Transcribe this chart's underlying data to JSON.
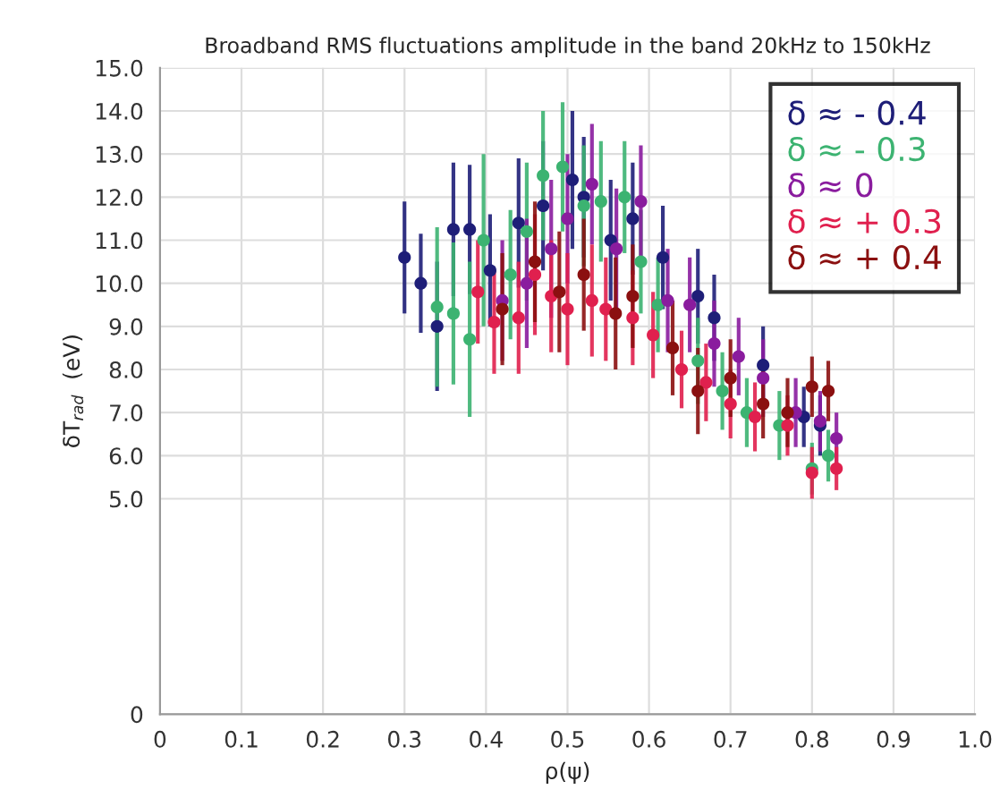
{
  "chart_data": {
    "type": "scatter",
    "title": "Broadband RMS fluctuations amplitude in the band 20kHz to 150kHz",
    "xlabel": "ρ(ψ)",
    "ylabel": "δT$_{rad}$  (eV)",
    "xlim": [
      0,
      1.0
    ],
    "xticks": [
      0,
      0.1,
      0.2,
      0.3,
      0.4,
      0.5,
      0.6,
      0.7,
      0.8,
      0.9,
      {
        "value": 1.0,
        "label": "1.0"
      }
    ],
    "ylim": [
      0,
      15
    ],
    "yticks": [
      0,
      {
        "value": 5,
        "label": "5.0"
      },
      {
        "value": 6,
        "label": "6.0"
      },
      {
        "value": 7,
        "label": "7.0"
      },
      {
        "value": 8,
        "label": "8.0"
      },
      {
        "value": 9,
        "label": "9.0"
      },
      {
        "value": 10,
        "label": "10.0"
      },
      {
        "value": 11,
        "label": "11.0"
      },
      {
        "value": 12,
        "label": "12.0"
      },
      {
        "value": 13,
        "label": "13.0"
      },
      {
        "value": 14,
        "label": "14.0"
      },
      {
        "value": 15,
        "label": "15.0"
      }
    ],
    "grid": true,
    "legend": "top right",
    "marker": "circle",
    "series": [
      {
        "name": "δ ≈ - 0.4",
        "color": "#1e1e78",
        "x": [
          0.3,
          0.32,
          0.34,
          0.36,
          0.38,
          0.405,
          0.44,
          0.47,
          0.506,
          0.52,
          0.553,
          0.58,
          0.617,
          0.66,
          0.68,
          0.74,
          0.79,
          0.81
        ],
        "values": [
          10.6,
          10.0,
          9.0,
          11.25,
          11.25,
          10.3,
          11.4,
          11.8,
          12.4,
          12.0,
          11.0,
          11.5,
          10.6,
          9.7,
          9.2,
          8.1,
          6.9,
          6.7
        ],
        "errors": [
          1.3,
          1.15,
          1.5,
          1.55,
          1.5,
          1.3,
          1.5,
          1.5,
          1.6,
          1.4,
          1.4,
          1.3,
          1.2,
          1.1,
          1.0,
          0.9,
          0.7,
          0.7
        ]
      },
      {
        "name": "δ ≈ - 0.3",
        "color": "#3cb371",
        "x": [
          0.34,
          0.36,
          0.38,
          0.397,
          0.43,
          0.45,
          0.47,
          0.494,
          0.52,
          0.541,
          0.57,
          0.59,
          0.611,
          0.66,
          0.69,
          0.72,
          0.76,
          0.8,
          0.82
        ],
        "values": [
          9.45,
          9.3,
          8.7,
          11.0,
          10.2,
          11.2,
          12.5,
          12.7,
          11.8,
          11.9,
          12.0,
          10.5,
          9.5,
          8.2,
          7.5,
          7.0,
          6.7,
          5.7,
          6.0
        ],
        "errors": [
          1.85,
          1.65,
          1.8,
          2.0,
          1.5,
          1.6,
          1.5,
          1.5,
          1.4,
          1.4,
          1.3,
          1.2,
          1.1,
          1.0,
          0.9,
          0.8,
          0.8,
          0.6,
          0.6
        ]
      },
      {
        "name": "δ ≈ 0",
        "color": "#8a1c9e",
        "x": [
          0.42,
          0.45,
          0.48,
          0.5,
          0.53,
          0.56,
          0.59,
          0.623,
          0.65,
          0.68,
          0.71,
          0.74,
          0.78,
          0.81,
          0.83
        ],
        "values": [
          9.6,
          10.0,
          10.8,
          11.5,
          12.3,
          10.8,
          11.9,
          9.6,
          9.5,
          8.6,
          8.3,
          7.8,
          7.0,
          6.8,
          6.4
        ],
        "errors": [
          1.4,
          1.5,
          1.6,
          1.5,
          1.4,
          1.4,
          1.3,
          1.2,
          1.1,
          1.0,
          0.9,
          0.9,
          0.8,
          0.7,
          0.6
        ]
      },
      {
        "name": "δ ≈ + 0.3",
        "color": "#e0204e",
        "x": [
          0.39,
          0.41,
          0.44,
          0.46,
          0.48,
          0.5,
          0.53,
          0.547,
          0.58,
          0.605,
          0.64,
          0.67,
          0.7,
          0.73,
          0.77,
          0.8,
          0.83
        ],
        "values": [
          9.8,
          9.1,
          9.2,
          10.2,
          9.7,
          9.4,
          9.6,
          9.4,
          9.2,
          8.8,
          8.0,
          7.7,
          7.2,
          6.9,
          6.7,
          5.6,
          5.7
        ],
        "errors": [
          1.2,
          1.2,
          1.3,
          1.4,
          1.3,
          1.3,
          1.3,
          1.2,
          1.1,
          1.0,
          0.9,
          0.9,
          0.8,
          0.8,
          0.7,
          0.6,
          0.5
        ]
      },
      {
        "name": "δ ≈ + 0.4",
        "color": "#8b1010",
        "x": [
          0.42,
          0.46,
          0.49,
          0.52,
          0.559,
          0.58,
          0.629,
          0.66,
          0.7,
          0.74,
          0.77,
          0.8,
          0.82
        ],
        "values": [
          9.4,
          10.5,
          9.8,
          10.2,
          9.3,
          9.7,
          8.5,
          7.5,
          7.8,
          7.2,
          7.0,
          7.6,
          7.5
        ],
        "errors": [
          1.3,
          1.4,
          1.4,
          1.3,
          1.3,
          1.2,
          1.1,
          1.0,
          0.9,
          0.8,
          0.8,
          0.7,
          0.7
        ]
      }
    ]
  }
}
